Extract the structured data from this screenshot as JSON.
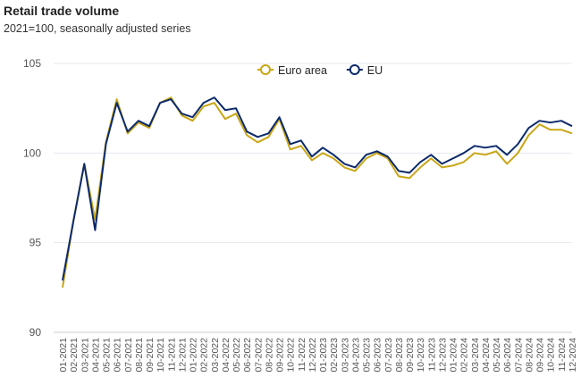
{
  "chart_data": {
    "type": "line",
    "title": "Retail trade volume",
    "subtitle": "2021=100, seasonally adjusted series",
    "xlabel": "",
    "ylabel": "",
    "ylim": [
      90,
      105
    ],
    "yticks": [
      90,
      95,
      100,
      105
    ],
    "grid": true,
    "legend_position": "top-center",
    "categories": [
      "01-2021",
      "02-2021",
      "03-2021",
      "04-2021",
      "05-2021",
      "06-2021",
      "07-2021",
      "08-2021",
      "09-2021",
      "10-2021",
      "11-2021",
      "12-2021",
      "01-2022",
      "02-2022",
      "03-2022",
      "04-2022",
      "05-2022",
      "06-2022",
      "07-2022",
      "08-2022",
      "09-2022",
      "10-2022",
      "11-2022",
      "12-2022",
      "01-2023",
      "02-2023",
      "03-2023",
      "04-2023",
      "05-2023",
      "06-2023",
      "07-2023",
      "08-2023",
      "09-2023",
      "10-2023",
      "11-2023",
      "12-2023",
      "01-2024",
      "02-2024",
      "03-2024",
      "04-2024",
      "05-2024",
      "06-2024",
      "07-2024",
      "08-2024",
      "09-2024",
      "10-2024",
      "11-2024",
      "12-2024"
    ],
    "series": [
      {
        "name": "Euro area",
        "color": "#c9a616",
        "values": [
          92.5,
          96.2,
          99.4,
          96.3,
          100.6,
          103.0,
          101.1,
          101.7,
          101.4,
          102.8,
          103.1,
          102.1,
          101.8,
          102.6,
          102.8,
          101.9,
          102.2,
          101.0,
          100.6,
          100.9,
          101.9,
          100.2,
          100.4,
          99.6,
          100.0,
          99.7,
          99.2,
          99.0,
          99.7,
          100.0,
          99.7,
          98.7,
          98.6,
          99.2,
          99.7,
          99.2,
          99.3,
          99.5,
          100.0,
          99.9,
          100.1,
          99.4,
          100.0,
          101.0,
          101.6,
          101.3,
          101.3,
          101.1
        ]
      },
      {
        "name": "EU",
        "color": "#0b2a6b",
        "values": [
          92.9,
          96.2,
          99.4,
          95.7,
          100.5,
          102.8,
          101.2,
          101.8,
          101.5,
          102.8,
          103.0,
          102.2,
          102.0,
          102.8,
          103.1,
          102.4,
          102.5,
          101.2,
          100.9,
          101.1,
          102.0,
          100.5,
          100.7,
          99.8,
          100.3,
          99.9,
          99.4,
          99.2,
          99.9,
          100.1,
          99.8,
          99.0,
          98.9,
          99.5,
          99.9,
          99.4,
          99.7,
          100.0,
          100.4,
          100.3,
          100.4,
          99.9,
          100.5,
          101.4,
          101.8,
          101.7,
          101.8,
          101.5
        ]
      }
    ]
  }
}
